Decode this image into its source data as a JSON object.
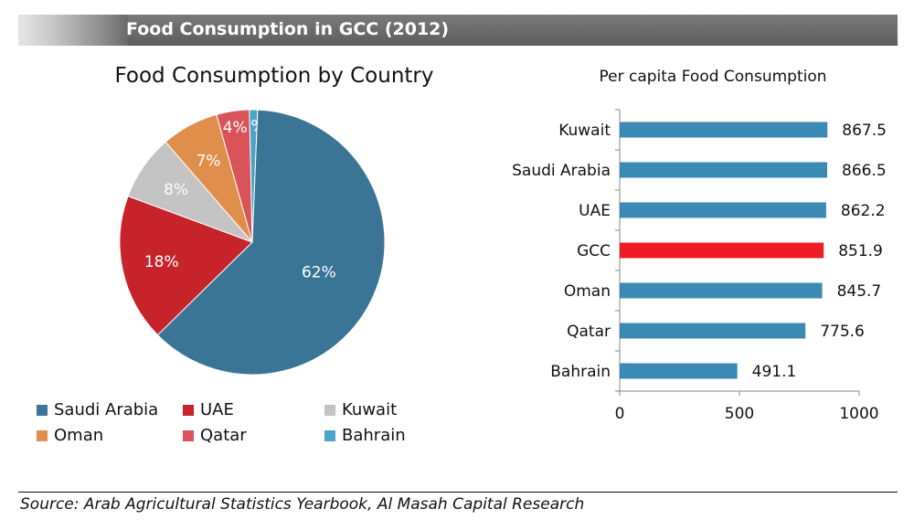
{
  "header": {
    "title": "Food Consumption in GCC (2012)"
  },
  "footer": {
    "source": "Source: Arab Agricultural Statistics Yearbook, Al Masah Capital Research"
  },
  "chart_data": [
    {
      "type": "pie",
      "title": "Food Consumption by Country",
      "slices": [
        {
          "label": "Saudi Arabia",
          "value": 62,
          "display": "62%",
          "color": "#3b7596"
        },
        {
          "label": "UAE",
          "value": 18,
          "display": "18%",
          "color": "#c6232b"
        },
        {
          "label": "Kuwait",
          "value": 8,
          "display": "8%",
          "color": "#c3c3c3"
        },
        {
          "label": "Oman",
          "value": 7,
          "display": "7%",
          "color": "#e08e4b"
        },
        {
          "label": "Qatar",
          "value": 4,
          "display": "4%",
          "color": "#d9535a"
        },
        {
          "label": "Bahrain",
          "value": 1,
          "display": "1%",
          "color": "#4ea4c8"
        }
      ],
      "legend": {
        "position": "bottom",
        "order": [
          "Saudi Arabia",
          "UAE",
          "Kuwait",
          "Oman",
          "Qatar",
          "Bahrain"
        ]
      }
    },
    {
      "type": "bar",
      "orientation": "horizontal",
      "title": "Per capita Food Consumption",
      "categories": [
        "Kuwait",
        "Saudi Arabia",
        "UAE",
        "GCC",
        "Oman",
        "Qatar",
        "Bahrain"
      ],
      "values": [
        867.5,
        866.5,
        862.2,
        851.9,
        845.7,
        775.6,
        491.1
      ],
      "labels": [
        "867.5",
        "866.5",
        "862.2",
        "851.9",
        "845.7",
        "775.6",
        "491.1"
      ],
      "colors": [
        "#3b8ab4",
        "#3b8ab4",
        "#3b8ab4",
        "#ee1c24",
        "#3b8ab4",
        "#3b8ab4",
        "#3b8ab4"
      ],
      "xlim": [
        0,
        1000
      ],
      "xticks": [
        "0",
        "500",
        "1000"
      ],
      "grid": false
    }
  ]
}
